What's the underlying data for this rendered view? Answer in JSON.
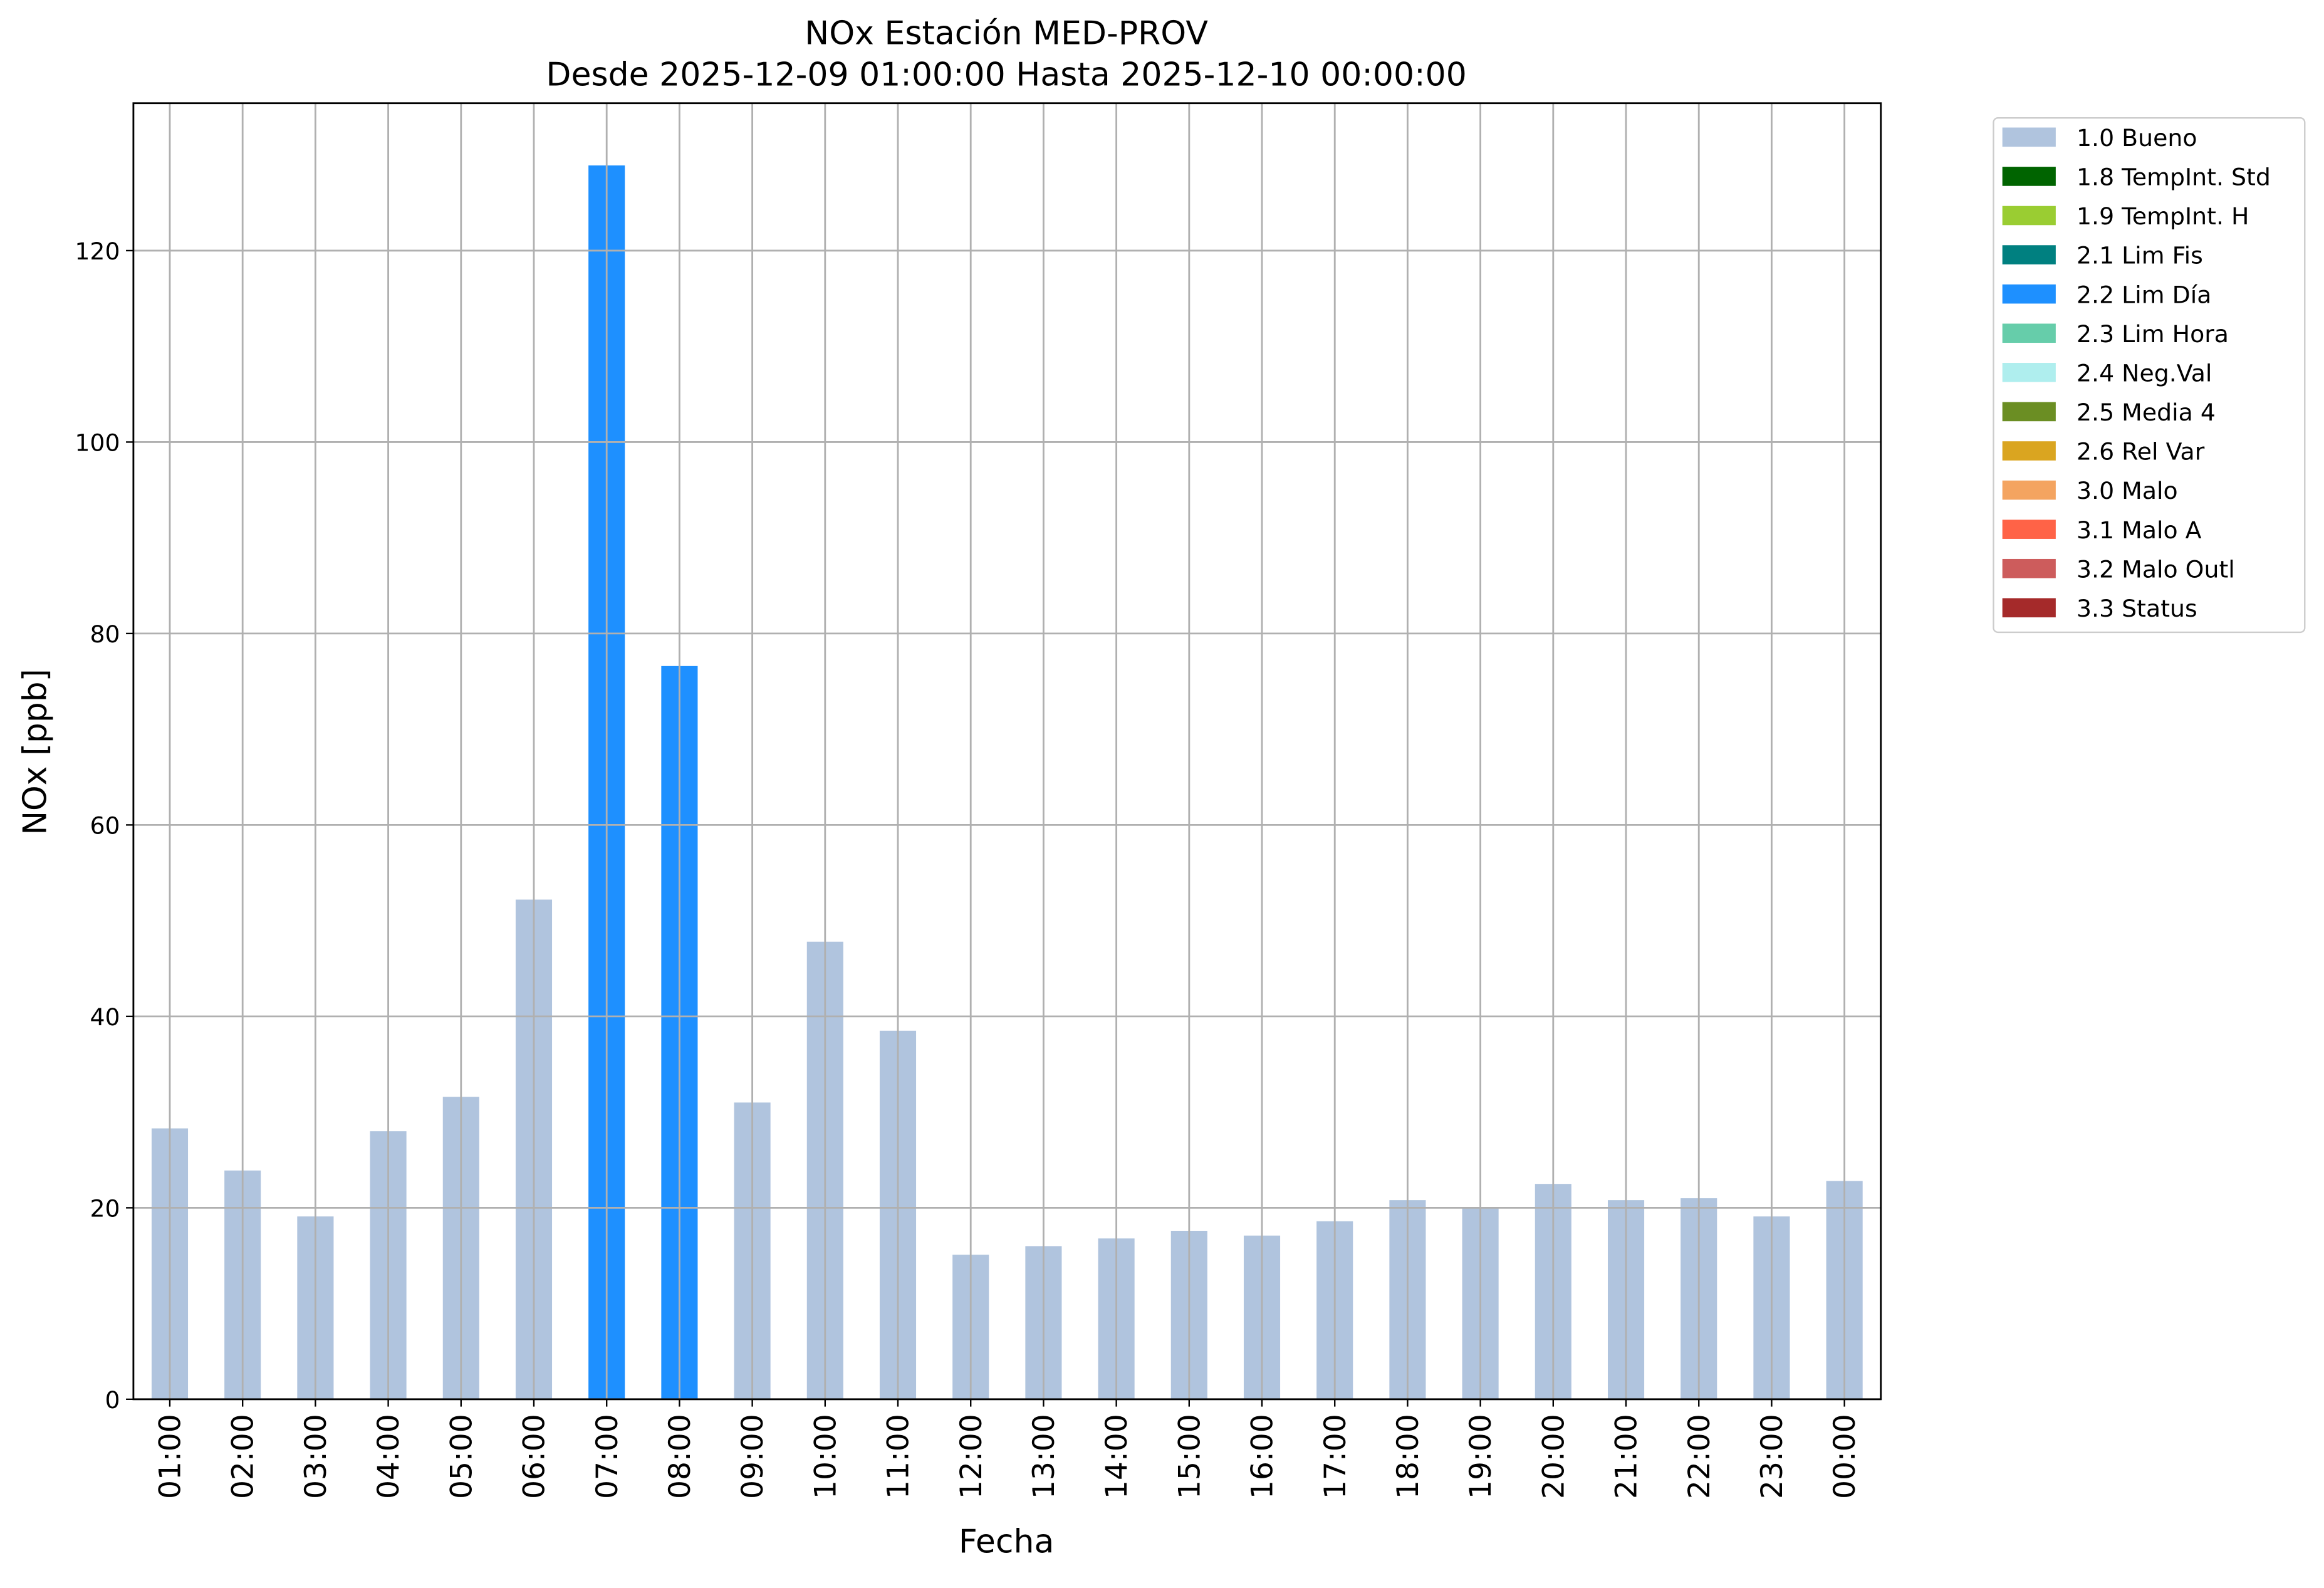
{
  "chart_data": {
    "type": "stacked_bar",
    "title": "NOx Estación MED-PROV",
    "subtitle": "Desde 2025-12-09 01:00:00 Hasta 2025-12-10 00:00:00",
    "x_label": "Fecha",
    "y_label": "NOx [ppb]",
    "categories": [
      "01:00",
      "02:00",
      "03:00",
      "04:00",
      "05:00",
      "06:00",
      "07:00",
      "08:00",
      "09:00",
      "10:00",
      "11:00",
      "12:00",
      "13:00",
      "14:00",
      "15:00",
      "16:00",
      "17:00",
      "18:00",
      "19:00",
      "20:00",
      "21:00",
      "22:00",
      "23:00",
      "00:00"
    ],
    "series": [
      {
        "name": "1.0 Bueno",
        "color": "#b0c4de",
        "values": [
          28.3,
          23.9,
          19.1,
          28.0,
          31.6,
          52.2,
          null,
          null,
          31.0,
          47.8,
          38.5,
          15.1,
          16.0,
          16.8,
          17.6,
          17.1,
          18.6,
          20.8,
          20.0,
          22.5,
          20.8,
          21.0,
          19.1,
          22.8
        ]
      },
      {
        "name": "1.8 TempInt. Std",
        "color": "#006400",
        "values": [
          null,
          null,
          null,
          null,
          null,
          null,
          null,
          null,
          null,
          null,
          null,
          null,
          null,
          null,
          null,
          null,
          null,
          null,
          null,
          null,
          null,
          null,
          null,
          null
        ]
      },
      {
        "name": "1.9 TempInt. H",
        "color": "#9acd32",
        "values": [
          null,
          null,
          null,
          null,
          null,
          null,
          null,
          null,
          null,
          null,
          null,
          null,
          null,
          null,
          null,
          null,
          null,
          null,
          null,
          null,
          null,
          null,
          null,
          null
        ]
      },
      {
        "name": "2.1 Lim Fis",
        "color": "#008080",
        "values": [
          null,
          null,
          null,
          null,
          null,
          null,
          null,
          null,
          null,
          null,
          null,
          null,
          null,
          null,
          null,
          null,
          null,
          null,
          null,
          null,
          null,
          null,
          null,
          null
        ]
      },
      {
        "name": "2.2 Lim Día",
        "color": "#1e90ff",
        "values": [
          null,
          null,
          null,
          null,
          null,
          null,
          128.9,
          76.6,
          null,
          null,
          null,
          null,
          null,
          null,
          null,
          null,
          null,
          null,
          null,
          null,
          null,
          null,
          null,
          null
        ]
      },
      {
        "name": "2.3 Lim Hora",
        "color": "#66cdaa",
        "values": [
          null,
          null,
          null,
          null,
          null,
          null,
          null,
          null,
          null,
          null,
          null,
          null,
          null,
          null,
          null,
          null,
          null,
          null,
          null,
          null,
          null,
          null,
          null,
          null
        ]
      },
      {
        "name": "2.4 Neg.Val",
        "color": "#afeeee",
        "values": [
          null,
          null,
          null,
          null,
          null,
          null,
          null,
          null,
          null,
          null,
          null,
          null,
          null,
          null,
          null,
          null,
          null,
          null,
          null,
          null,
          null,
          null,
          null,
          null
        ]
      },
      {
        "name": "2.5 Media 4",
        "color": "#6b8e23",
        "values": [
          null,
          null,
          null,
          null,
          null,
          null,
          null,
          null,
          null,
          null,
          null,
          null,
          null,
          null,
          null,
          null,
          null,
          null,
          null,
          null,
          null,
          null,
          null,
          null
        ]
      },
      {
        "name": "2.6 Rel Var",
        "color": "#daa520",
        "values": [
          null,
          null,
          null,
          null,
          null,
          null,
          null,
          null,
          null,
          null,
          null,
          null,
          null,
          null,
          null,
          null,
          null,
          null,
          null,
          null,
          null,
          null,
          null,
          null
        ]
      },
      {
        "name": "3.0 Malo",
        "color": "#f4a460",
        "values": [
          null,
          null,
          null,
          null,
          null,
          null,
          null,
          null,
          null,
          null,
          null,
          null,
          null,
          null,
          null,
          null,
          null,
          null,
          null,
          null,
          null,
          null,
          null,
          null
        ]
      },
      {
        "name": "3.1 Malo A",
        "color": "#ff6347",
        "values": [
          null,
          null,
          null,
          null,
          null,
          null,
          null,
          null,
          null,
          null,
          null,
          null,
          null,
          null,
          null,
          null,
          null,
          null,
          null,
          null,
          null,
          null,
          null,
          null
        ]
      },
      {
        "name": "3.2 Malo Outl",
        "color": "#cd5c5c",
        "values": [
          null,
          null,
          null,
          null,
          null,
          null,
          null,
          null,
          null,
          null,
          null,
          null,
          null,
          null,
          null,
          null,
          null,
          null,
          null,
          null,
          null,
          null,
          null,
          null
        ]
      },
      {
        "name": "3.3 Status",
        "color": "#a52a2a",
        "values": [
          null,
          null,
          null,
          null,
          null,
          null,
          null,
          null,
          null,
          null,
          null,
          null,
          null,
          null,
          null,
          null,
          null,
          null,
          null,
          null,
          null,
          null,
          null,
          null
        ]
      }
    ],
    "ylim": [
      0,
      135.4
    ],
    "yticks": [
      0,
      20,
      40,
      60,
      80,
      100,
      120
    ],
    "grid": true,
    "legend": "outside-right"
  }
}
